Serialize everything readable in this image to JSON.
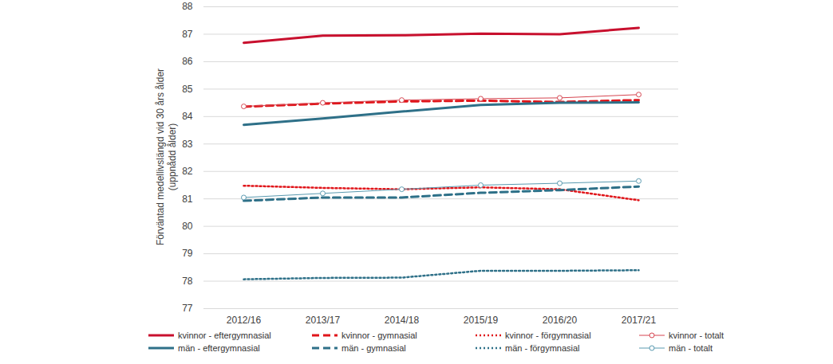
{
  "chart_data": {
    "type": "line",
    "ylabel": "Förväntad medellivslängd vid 30 års ålder\n(uppnådd ålder)",
    "categories": [
      "2012/16",
      "2013/17",
      "2014/18",
      "2015/19",
      "2016/20",
      "2017/21"
    ],
    "ylim": [
      77,
      88
    ],
    "yticks": [
      77,
      78,
      79,
      80,
      81,
      82,
      83,
      84,
      85,
      86,
      87,
      88
    ],
    "grid": true,
    "legend": "bottom",
    "series": [
      {
        "name": "kvinnor - eftergymnasial",
        "color": "#c8102e",
        "line_style": "solid",
        "values": [
          86.69,
          86.95,
          86.96,
          87.02,
          87.0,
          87.23
        ]
      },
      {
        "name": "kvinnor - gymnasial",
        "color": "#e0151a",
        "line_style": "dashed",
        "values": [
          84.36,
          84.47,
          84.55,
          84.58,
          84.53,
          84.6
        ]
      },
      {
        "name": "kvinnor - förgymnasial",
        "color": "#e0151a",
        "line_style": "dotted",
        "values": [
          81.48,
          81.4,
          81.35,
          81.42,
          81.35,
          80.95
        ]
      },
      {
        "name": "kvinnor - totalt",
        "color": "#d64550",
        "line_style": "solid",
        "marker": "circle",
        "values": [
          84.37,
          84.5,
          84.6,
          84.65,
          84.68,
          84.8
        ]
      },
      {
        "name": "män - eftergymnasial",
        "color": "#2e7088",
        "line_style": "solid",
        "values": [
          83.7,
          83.93,
          84.18,
          84.42,
          84.5,
          84.52
        ]
      },
      {
        "name": "män - gymnasial",
        "color": "#2e7088",
        "line_style": "dashed",
        "values": [
          80.93,
          81.05,
          81.05,
          81.22,
          81.32,
          81.45
        ]
      },
      {
        "name": "män - förgymnasial",
        "color": "#2e7088",
        "line_style": "dotted",
        "values": [
          78.07,
          78.12,
          78.13,
          78.38,
          78.38,
          78.4
        ]
      },
      {
        "name": "män - totalt",
        "color": "#5a9ab0",
        "line_style": "solid",
        "marker": "circle",
        "values": [
          81.05,
          81.2,
          81.35,
          81.5,
          81.57,
          81.65
        ]
      }
    ]
  }
}
